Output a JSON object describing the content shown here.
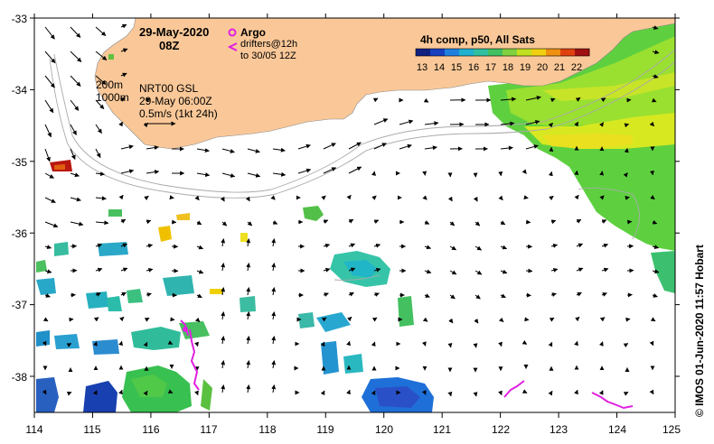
{
  "map": {
    "date": "29-May-2020",
    "hour": "08Z",
    "argo_label": "Argo",
    "drifters_line1": "drifters@12h",
    "drifters_line2": "to 30/05 12Z",
    "isobath_shallow": "200m",
    "isobath_deep": "1000m",
    "model_label": "NRT00 GSL",
    "model_time": "29-May 06:00Z",
    "vector_scale": "0.5m/s (1kt 24h)",
    "colorbar_title": "4h comp, p50, All Sats",
    "colorbar_ticks": [
      "13",
      "14",
      "15",
      "16",
      "17",
      "18",
      "19",
      "20",
      "21",
      "22"
    ],
    "colorbar_range": [
      12.5,
      22.5
    ],
    "credit": "© IMOS 01-Jun-2020 11:57 Hobart",
    "lon_labels": [
      "114",
      "115",
      "116",
      "117",
      "118",
      "119",
      "120",
      "121",
      "122",
      "123",
      "124",
      "125"
    ],
    "lat_labels": [
      "-33",
      "-34",
      "-35",
      "-36",
      "-37",
      "-38"
    ],
    "lon_range": [
      114,
      125
    ],
    "lat_range": [
      -33,
      -38.5
    ],
    "colors": {
      "land": "#fac898",
      "argo": "#e020e0",
      "drifter": "#e020e0"
    }
  }
}
